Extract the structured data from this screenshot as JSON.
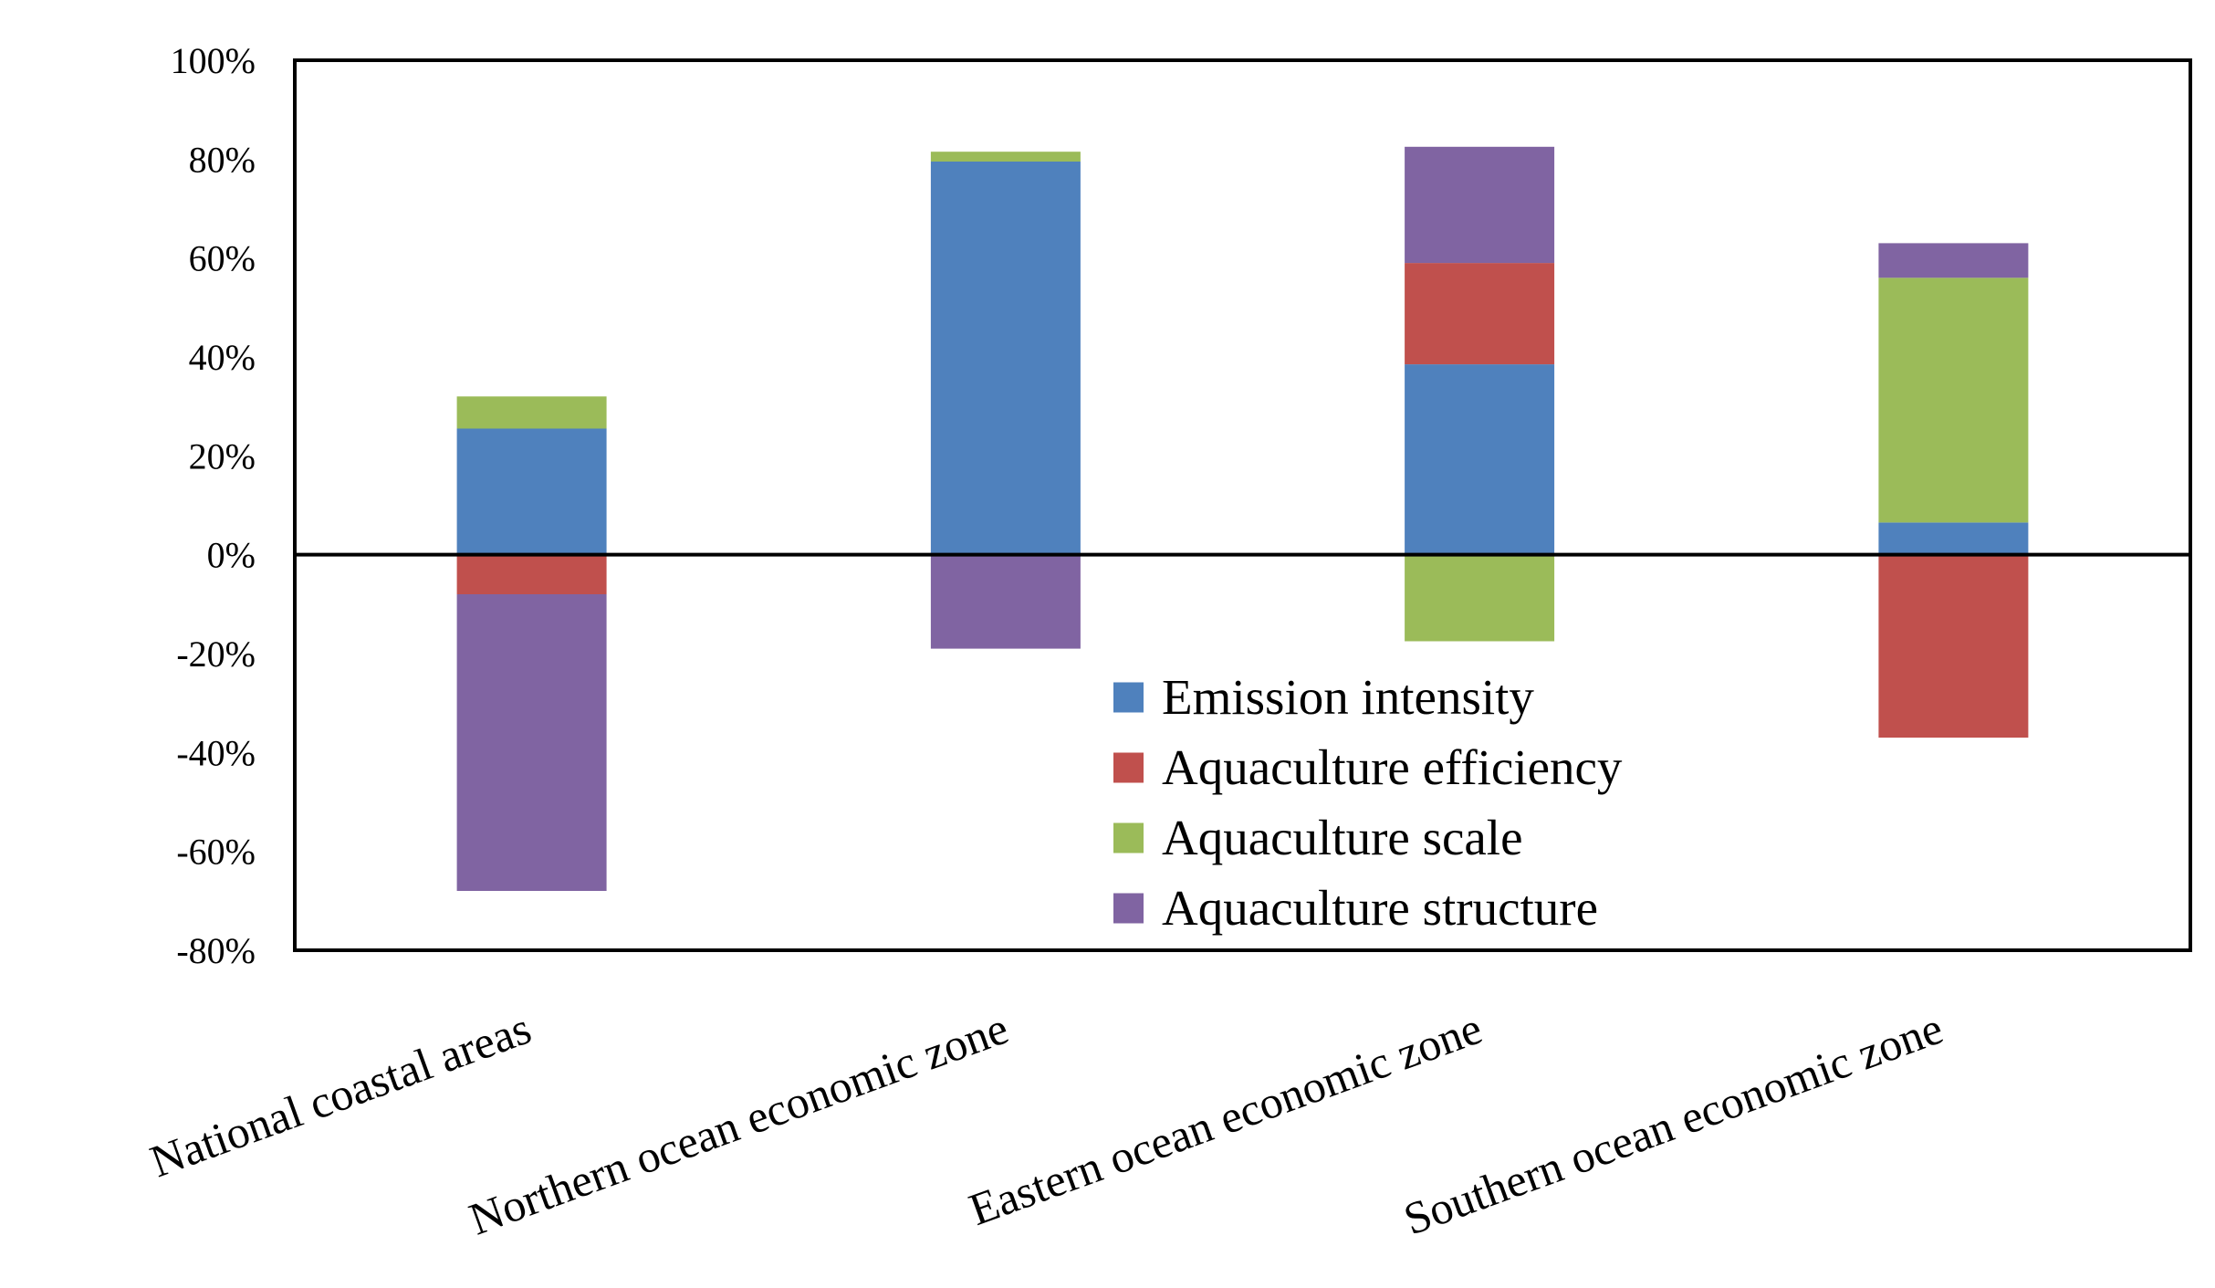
{
  "chart_data": {
    "type": "bar",
    "stacked": true,
    "categories": [
      "National coastal areas",
      "Northern ocean economic zone",
      "Eastern ocean economic zone",
      "Southern ocean economic zone"
    ],
    "series": [
      {
        "name": "Emission intensity",
        "color": "#4F81BD",
        "values": [
          25.5,
          79.5,
          38.5,
          6.5
        ]
      },
      {
        "name": "Aquaculture  efficiency",
        "color": "#C0504D",
        "values": [
          -8,
          0,
          20.5,
          -37
        ]
      },
      {
        "name": "Aquaculture scale",
        "color": "#9BBB59",
        "values": [
          6.5,
          2,
          -17.5,
          49.5
        ]
      },
      {
        "name": "Aquaculture structure",
        "color": "#8064A2",
        "values": [
          -60,
          -19,
          23.5,
          7
        ]
      }
    ],
    "yticks": [
      "100%",
      "80%",
      "60%",
      "40%",
      "20%",
      "0%",
      "-20%",
      "-40%",
      "-60%",
      "-80%"
    ],
    "ylim": [
      -80,
      100
    ],
    "y_unit": "percent",
    "grid": false,
    "legend_position": "bottom-center inside plot",
    "title": "",
    "xlabel": "",
    "ylabel": ""
  }
}
